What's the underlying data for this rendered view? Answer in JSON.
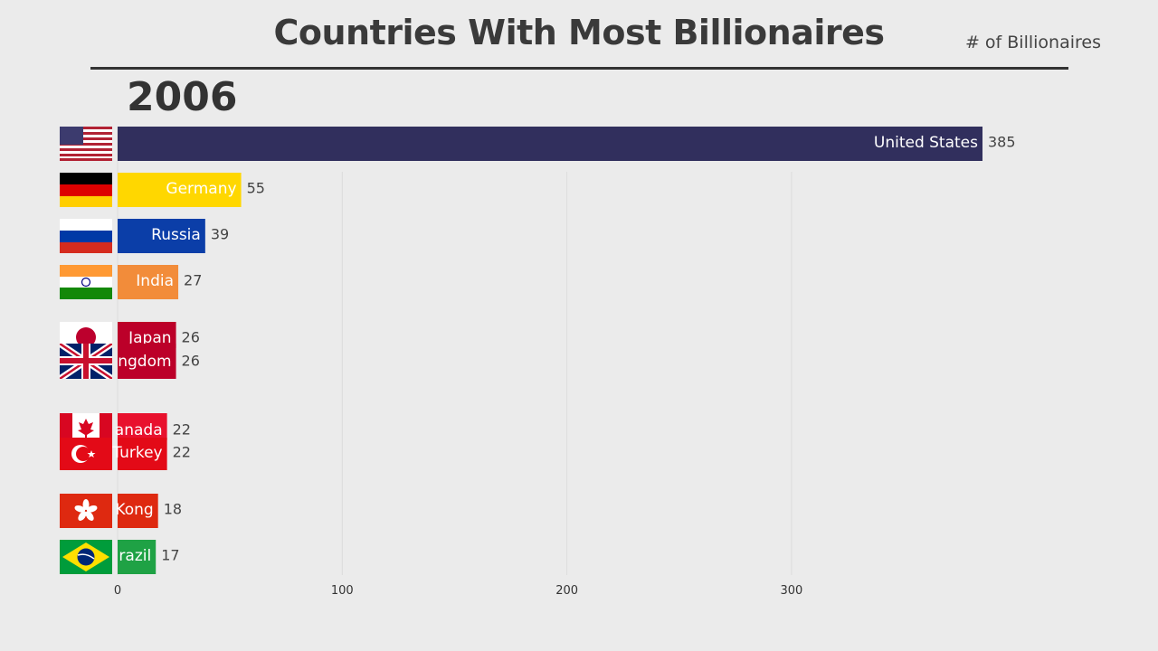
{
  "header": {
    "title": "Countries With Most Billionaires",
    "unit_label": "# of Billionaires",
    "year": "2006"
  },
  "chart_data": {
    "type": "bar",
    "orientation": "horizontal",
    "title": "Countries With Most Billionaires",
    "value_label": "# of Billionaires",
    "year": "2006",
    "xlim": [
      0,
      385
    ],
    "xticks": [
      0,
      100,
      200,
      300
    ],
    "grid": true,
    "categories": [
      "United States",
      "Germany",
      "Russia",
      "India",
      "Japan",
      "United Kingdom",
      "Canada",
      "Turkey",
      "Hong Kong",
      "Brazil"
    ],
    "values": [
      385,
      55,
      39,
      27,
      26,
      26,
      22,
      22,
      18,
      17
    ],
    "visible_labels": [
      "United States",
      "Germany",
      "Russia",
      "India",
      "Japan",
      "ngdom",
      "anada",
      "Turkey",
      "Kong",
      "razil"
    ],
    "colors": [
      "#312f5d",
      "#ffd700",
      "#0b3ea8",
      "#f28c3a",
      "#bc0029",
      "#bc0029",
      "#e8112d",
      "#e30a17",
      "#de2910",
      "#1fa245"
    ],
    "flags": [
      "us-flag-icon",
      "germany-flag-icon",
      "russia-flag-icon",
      "india-flag-icon",
      "japan-flag-icon",
      "uk-flag-icon",
      "canada-flag-icon",
      "turkey-flag-icon",
      "hongkong-flag-icon",
      "brazil-flag-icon"
    ]
  }
}
